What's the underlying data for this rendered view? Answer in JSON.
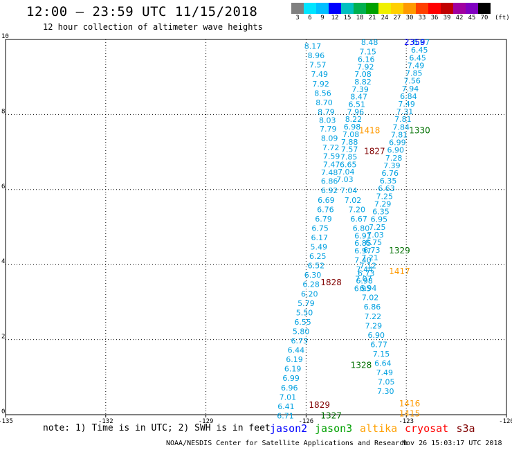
{
  "header": {
    "title": "12:00 – 23:59 UTC 11/15/2018",
    "subtitle": "12 hour collection of altimeter wave heights"
  },
  "color_scale": {
    "ticks": [
      "3",
      "6",
      "9",
      "12",
      "15",
      "18",
      "21",
      "24",
      "27",
      "30",
      "33",
      "36",
      "39",
      "42",
      "45",
      "70",
      "(ft)"
    ],
    "colors": [
      "#808080",
      "#00e5ff",
      "#00bfff",
      "#0000ff",
      "#00c0c0",
      "#00b050",
      "#00a000",
      "#f0f000",
      "#ffd000",
      "#ff9a00",
      "#ff4000",
      "#ff0000",
      "#c00000",
      "#a000a0",
      "#8000c0",
      "#000000"
    ]
  },
  "chart_data": {
    "type": "scatter",
    "xlim": [
      -135,
      -120
    ],
    "ylim": [
      0,
      10
    ],
    "x_ticks": [
      "-135",
      "-132",
      "-129",
      "-126",
      "-123",
      "-120"
    ],
    "y_ticks": [
      "0",
      "2",
      "4",
      "6",
      "8",
      "10"
    ],
    "grid": true,
    "series": [
      {
        "name": "jason3",
        "color": "#00a0e0",
        "points": [
          {
            "x": -124.1,
            "y": 9.85,
            "v": "8.48"
          },
          {
            "x": -124.15,
            "y": 9.6,
            "v": "7.15"
          },
          {
            "x": -124.2,
            "y": 9.4,
            "v": "6.16"
          },
          {
            "x": -124.22,
            "y": 9.2,
            "v": "7.92"
          },
          {
            "x": -124.3,
            "y": 9.0,
            "v": "7.08"
          },
          {
            "x": -124.3,
            "y": 8.8,
            "v": "8.82"
          },
          {
            "x": -124.38,
            "y": 8.6,
            "v": "7.39"
          },
          {
            "x": -124.42,
            "y": 8.4,
            "v": "8.47"
          },
          {
            "x": -124.48,
            "y": 8.2,
            "v": "6.51"
          },
          {
            "x": -124.52,
            "y": 8.0,
            "v": "7.96"
          },
          {
            "x": -124.58,
            "y": 7.8,
            "v": "8.22"
          },
          {
            "x": -124.62,
            "y": 7.6,
            "v": "6.98"
          },
          {
            "x": -124.66,
            "y": 7.4,
            "v": "7.08"
          },
          {
            "x": -124.7,
            "y": 7.2,
            "v": "7.88"
          },
          {
            "x": -124.7,
            "y": 7.0,
            "v": "7.57"
          },
          {
            "x": -124.72,
            "y": 6.8,
            "v": "7.85"
          },
          {
            "x": -124.74,
            "y": 6.6,
            "v": "6.65"
          },
          {
            "x": -124.8,
            "y": 6.4,
            "v": "7.04"
          },
          {
            "x": -124.84,
            "y": 6.2,
            "v": "7.03"
          },
          {
            "x": -124.72,
            "y": 5.9,
            "v": "7.04"
          },
          {
            "x": -124.6,
            "y": 5.65,
            "v": "7.02"
          },
          {
            "x": -124.48,
            "y": 5.4,
            "v": "7.20"
          },
          {
            "x": -124.42,
            "y": 5.15,
            "v": "6.67"
          },
          {
            "x": -124.35,
            "y": 4.9,
            "v": "6.80"
          },
          {
            "x": -124.3,
            "y": 4.7,
            "v": "6.91"
          },
          {
            "x": -124.3,
            "y": 4.5,
            "v": "6.85"
          },
          {
            "x": -124.3,
            "y": 4.3,
            "v": "6.97"
          },
          {
            "x": -124.3,
            "y": 4.05,
            "v": "7.40"
          },
          {
            "x": -124.25,
            "y": 3.8,
            "v": "7.44"
          },
          {
            "x": -124.28,
            "y": 3.55,
            "v": "7.07"
          },
          {
            "x": -124.14,
            "y": 3.3,
            "v": "6.94"
          },
          {
            "x": -124.08,
            "y": 3.05,
            "v": "7.02"
          },
          {
            "x": -124.02,
            "y": 2.8,
            "v": "6.86"
          },
          {
            "x": -124.0,
            "y": 2.55,
            "v": "7.22"
          },
          {
            "x": -123.98,
            "y": 2.3,
            "v": "7.29"
          },
          {
            "x": -123.9,
            "y": 2.05,
            "v": "6.90"
          },
          {
            "x": -123.82,
            "y": 1.8,
            "v": "6.77"
          },
          {
            "x": -123.75,
            "y": 1.55,
            "v": "7.15"
          },
          {
            "x": -123.7,
            "y": 1.3,
            "v": "6.64"
          },
          {
            "x": -123.65,
            "y": 1.05,
            "v": "7.49"
          },
          {
            "x": -123.6,
            "y": 0.8,
            "v": "7.05"
          },
          {
            "x": -123.62,
            "y": 0.55,
            "v": "7.30"
          }
        ]
      },
      {
        "name": "jason3-west",
        "color": "#00a0e0",
        "points": [
          {
            "x": -125.8,
            "y": 9.75,
            "v": "8.17"
          },
          {
            "x": -125.7,
            "y": 9.5,
            "v": "8.96"
          },
          {
            "x": -125.65,
            "y": 9.25,
            "v": "7.57"
          },
          {
            "x": -125.6,
            "y": 9.0,
            "v": "7.49"
          },
          {
            "x": -125.56,
            "y": 8.75,
            "v": "7.92"
          },
          {
            "x": -125.5,
            "y": 8.5,
            "v": "8.56"
          },
          {
            "x": -125.46,
            "y": 8.25,
            "v": "8.70"
          },
          {
            "x": -125.4,
            "y": 8.0,
            "v": "8.79"
          },
          {
            "x": -125.36,
            "y": 7.78,
            "v": "8.03"
          },
          {
            "x": -125.34,
            "y": 7.55,
            "v": "7.79"
          },
          {
            "x": -125.3,
            "y": 7.3,
            "v": "8.09"
          },
          {
            "x": -125.26,
            "y": 7.05,
            "v": "7.72"
          },
          {
            "x": -125.24,
            "y": 6.82,
            "v": "7.59"
          },
          {
            "x": -125.24,
            "y": 6.6,
            "v": "7.47"
          },
          {
            "x": -125.3,
            "y": 6.38,
            "v": "7.48"
          },
          {
            "x": -125.3,
            "y": 6.15,
            "v": "6.86"
          },
          {
            "x": -125.3,
            "y": 5.9,
            "v": "6.92"
          },
          {
            "x": -125.4,
            "y": 5.65,
            "v": "6.69"
          },
          {
            "x": -125.42,
            "y": 5.4,
            "v": "6.76"
          },
          {
            "x": -125.48,
            "y": 5.15,
            "v": "6.79"
          },
          {
            "x": -125.58,
            "y": 4.9,
            "v": "6.75"
          },
          {
            "x": -125.6,
            "y": 4.65,
            "v": "6.17"
          },
          {
            "x": -125.62,
            "y": 4.4,
            "v": "5.49"
          },
          {
            "x": -125.65,
            "y": 4.15,
            "v": "6.25"
          },
          {
            "x": -125.7,
            "y": 3.9,
            "v": "6.52"
          },
          {
            "x": -125.8,
            "y": 3.65,
            "v": "6.30"
          },
          {
            "x": -125.85,
            "y": 3.4,
            "v": "6.28"
          },
          {
            "x": -125.9,
            "y": 3.15,
            "v": "6.20"
          },
          {
            "x": -126.0,
            "y": 2.9,
            "v": "5.79"
          },
          {
            "x": -126.05,
            "y": 2.65,
            "v": "5.50"
          },
          {
            "x": -126.1,
            "y": 2.4,
            "v": "6.55"
          },
          {
            "x": -126.15,
            "y": 2.15,
            "v": "5.80"
          },
          {
            "x": -126.2,
            "y": 1.9,
            "v": "6.73"
          },
          {
            "x": -126.3,
            "y": 1.65,
            "v": "6.44"
          },
          {
            "x": -126.35,
            "y": 1.4,
            "v": "6.19"
          },
          {
            "x": -126.4,
            "y": 1.15,
            "v": "6.19"
          },
          {
            "x": -126.45,
            "y": 0.9,
            "v": "6.99"
          },
          {
            "x": -126.5,
            "y": 0.65,
            "v": "6.96"
          },
          {
            "x": -126.55,
            "y": 0.4,
            "v": "7.01"
          },
          {
            "x": -126.6,
            "y": 0.15,
            "v": "6.41"
          },
          {
            "x": -126.62,
            "y": -0.1,
            "v": "6.71"
          }
        ]
      }
    ]
  },
  "labels": [
    {
      "text": "2359",
      "x": -122.75,
      "y": 9.85,
      "color": "#0000ff"
    },
    {
      "text": "1418",
      "x": -124.1,
      "y": 7.5,
      "color": "#ff9a00"
    },
    {
      "text": "1330",
      "x": -122.6,
      "y": 7.5,
      "color": "#007000"
    },
    {
      "text": "1827",
      "x": -123.95,
      "y": 6.95,
      "color": "#800000"
    },
    {
      "text": "1329",
      "x": -123.2,
      "y": 4.3,
      "color": "#007000"
    },
    {
      "text": "1417",
      "x": -123.2,
      "y": 3.75,
      "color": "#ff9a00"
    },
    {
      "text": "1828",
      "x": -125.25,
      "y": 3.45,
      "color": "#800000"
    },
    {
      "text": "1328",
      "x": -124.35,
      "y": 1.25,
      "color": "#007000"
    },
    {
      "text": "1416",
      "x": -122.9,
      "y": 0.22,
      "color": "#ff9a00"
    },
    {
      "text": "1829",
      "x": -125.6,
      "y": 0.18,
      "color": "#800000"
    },
    {
      "text": "1415",
      "x": -122.9,
      "y": -0.05,
      "color": "#ff9a00"
    },
    {
      "text": "1327",
      "x": -125.25,
      "y": -0.1,
      "color": "#007000"
    }
  ],
  "note": "note: 1) Time is in UTC; 2) SWH is in feet",
  "legend": [
    {
      "label": "jason2",
      "color": "#0000ff"
    },
    {
      "label": "jason3",
      "color": "#00a000"
    },
    {
      "label": "altika",
      "color": "#ffa000"
    },
    {
      "label": "cryosat",
      "color": "#ff0000"
    },
    {
      "label": "s3a",
      "color": "#800000"
    }
  ],
  "footer": "NOAA/NESDIS Center for Satellite Applications and Research",
  "footer_date": "Nov 26 15:03:17 UTC 2018"
}
